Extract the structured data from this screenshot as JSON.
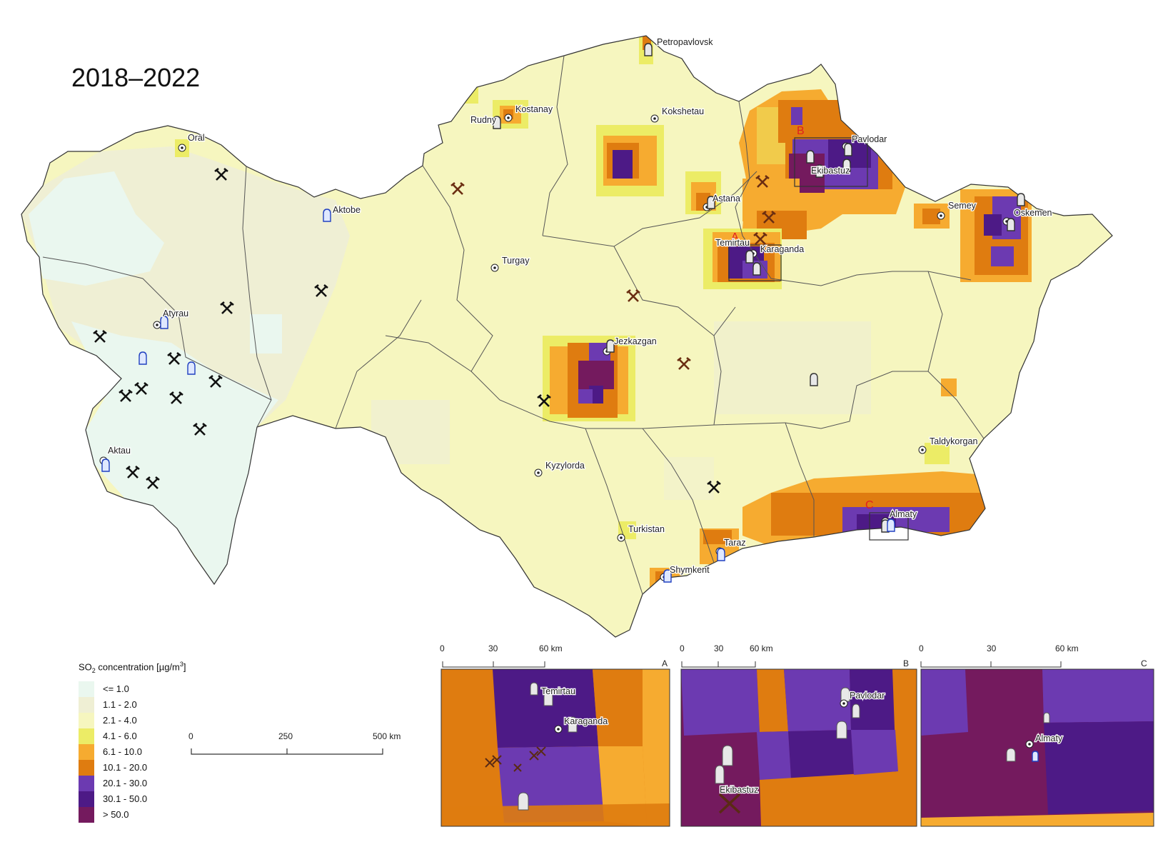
{
  "map": {
    "period_title": "2018–2022",
    "legend": {
      "title_prefix": "SO",
      "title_sub": "2",
      "title_suffix": " concentration [µg/m",
      "title_sup": "3",
      "title_end": "]",
      "classes": [
        {
          "label": "<= 1.0",
          "color": "#eaf7ef"
        },
        {
          "label": "1.1 - 2.0",
          "color": "#efefd4"
        },
        {
          "label": "2.1 - 4.0",
          "color": "#f6f6bf"
        },
        {
          "label": "4.1 - 6.0",
          "color": "#ecec66"
        },
        {
          "label": "6.1 - 10.0",
          "color": "#f6ab30"
        },
        {
          "label": "10.1 - 20.0",
          "color": "#df7c10"
        },
        {
          "label": "20.1 - 30.0",
          "color": "#6c3ab1"
        },
        {
          "label": "30.1 - 50.0",
          "color": "#4d1a86"
        },
        {
          "label": "> 50.0",
          "color": "#741a5e"
        }
      ]
    },
    "scale_bar": {
      "labels": [
        "0",
        "250",
        "500 km"
      ]
    },
    "cities": [
      {
        "name": "Petropavlovsk"
      },
      {
        "name": "Kostanay"
      },
      {
        "name": "Rudny"
      },
      {
        "name": "Kokshetau"
      },
      {
        "name": "Oral"
      },
      {
        "name": "Pavlodar"
      },
      {
        "name": "Ekibastuz"
      },
      {
        "name": "Astana"
      },
      {
        "name": "Aktobe"
      },
      {
        "name": "Semey"
      },
      {
        "name": "Oskemen"
      },
      {
        "name": "Temirtau"
      },
      {
        "name": "Karaganda"
      },
      {
        "name": "Turgay"
      },
      {
        "name": "Atyrau"
      },
      {
        "name": "Jezkazgan"
      },
      {
        "name": "Aktau"
      },
      {
        "name": "Kyzylorda"
      },
      {
        "name": "Taldykorgan"
      },
      {
        "name": "Almaty"
      },
      {
        "name": "Turkistan"
      },
      {
        "name": "Taraz"
      },
      {
        "name": "Shymkent"
      }
    ],
    "inset_markers": [
      "A",
      "B",
      "C"
    ]
  },
  "insets": [
    {
      "id": "A",
      "scale_labels": [
        "0",
        "30",
        "60 km"
      ],
      "city_labels": [
        "Temirtau",
        "Karaganda"
      ]
    },
    {
      "id": "B",
      "scale_labels": [
        "0",
        "30",
        "60 km"
      ],
      "city_labels": [
        "Pavlodar",
        "Ekibastuz"
      ]
    },
    {
      "id": "C",
      "scale_labels": [
        "0",
        "30",
        "60 km"
      ],
      "city_labels": [
        "Almaty"
      ]
    }
  ],
  "icons": [
    "city-center-icon",
    "power-plant-icon",
    "mine-icon",
    "oil-refinery-icon"
  ]
}
